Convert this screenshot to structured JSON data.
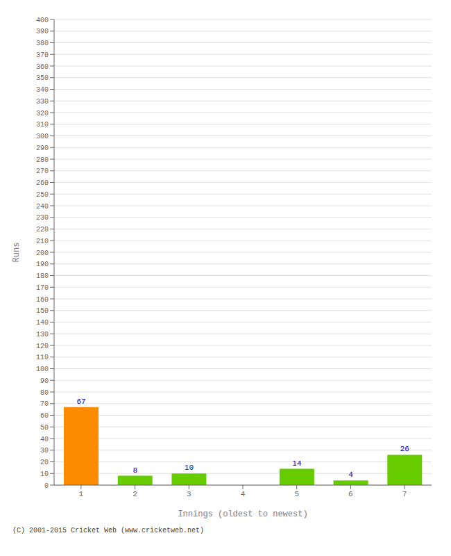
{
  "chart_data": {
    "type": "bar",
    "categories": [
      "1",
      "2",
      "3",
      "4",
      "5",
      "6",
      "7"
    ],
    "values": [
      67,
      8,
      10,
      0,
      14,
      4,
      26
    ],
    "colors": [
      "#ff8c00",
      "#66cc00",
      "#66cc00",
      "#66cc00",
      "#66cc00",
      "#66cc00",
      "#66cc00"
    ],
    "xlabel": "Innings (oldest to newest)",
    "ylabel": "Runs",
    "ylim": [
      0,
      400
    ],
    "yticks": [
      0,
      10,
      20,
      30,
      40,
      50,
      60,
      70,
      80,
      90,
      100,
      110,
      120,
      130,
      140,
      150,
      160,
      170,
      180,
      190,
      200,
      210,
      220,
      230,
      240,
      250,
      260,
      270,
      280,
      290,
      300,
      310,
      320,
      330,
      340,
      350,
      360,
      370,
      380,
      390,
      400
    ],
    "grid": true,
    "data_labels": true,
    "annotation": "(C) 2001-2015 Cricket Web (www.cricketweb.net)"
  }
}
